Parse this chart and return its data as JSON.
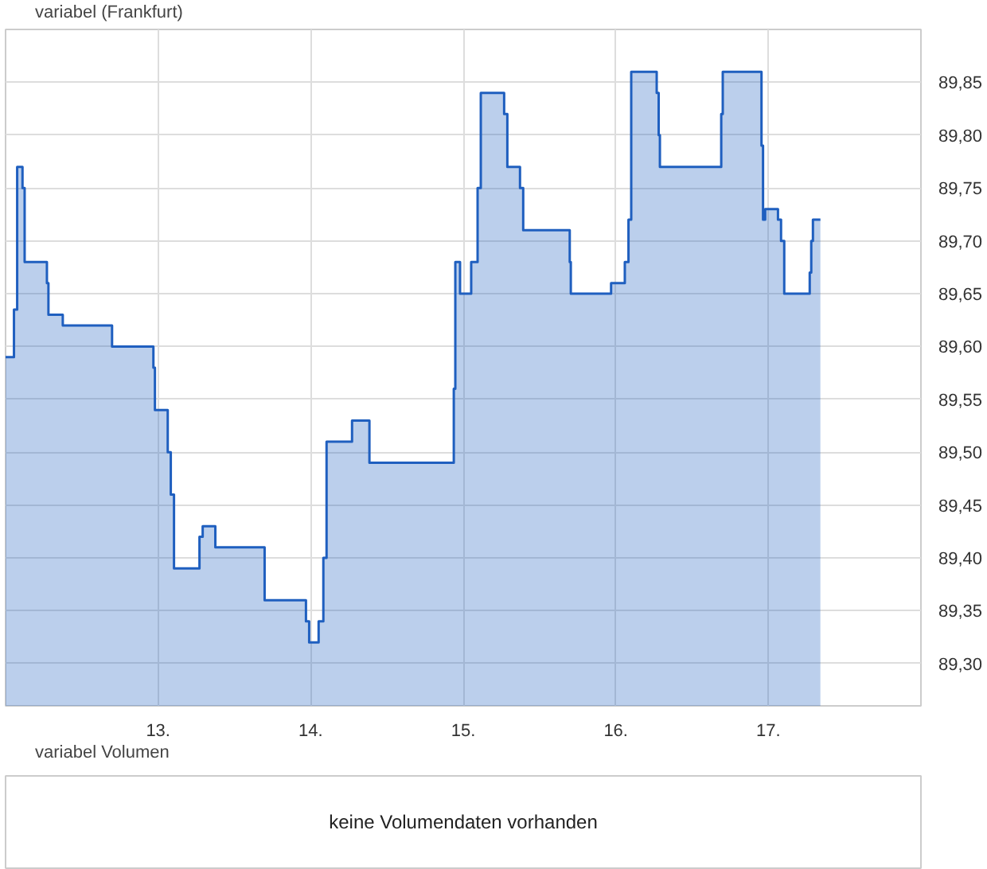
{
  "chart_data": [
    {
      "type": "area",
      "series": [
        {
          "name": "variabel (Frankfurt)",
          "color": "#1f5fbf",
          "x": [
            12.0,
            12.055,
            12.055,
            12.076,
            12.076,
            12.111,
            12.111,
            12.125,
            12.125,
            12.271,
            12.271,
            12.281,
            12.281,
            12.375,
            12.375,
            12.698,
            12.698,
            12.969,
            12.969,
            12.979,
            12.979,
            13.063,
            13.063,
            13.083,
            13.083,
            13.104,
            13.104,
            13.271,
            13.271,
            13.292,
            13.292,
            13.375,
            13.375,
            13.698,
            13.698,
            13.969,
            13.969,
            13.99,
            13.99,
            14.052,
            14.052,
            14.083,
            14.083,
            14.104,
            14.104,
            14.271,
            14.271,
            14.385,
            14.385,
            14.938,
            14.938,
            14.948,
            14.948,
            14.979,
            14.979,
            15.052,
            15.052,
            15.094,
            15.094,
            15.115,
            15.115,
            15.268,
            15.268,
            15.289,
            15.289,
            15.372,
            15.372,
            15.393,
            15.393,
            15.698,
            15.698,
            15.705,
            15.705,
            15.969,
            15.969,
            16.059,
            16.059,
            16.083,
            16.083,
            16.101,
            16.101,
            16.268,
            16.268,
            16.281,
            16.281,
            16.289,
            16.289,
            16.691,
            16.691,
            16.701,
            16.701,
            16.955,
            16.955,
            16.965,
            16.965,
            16.979,
            16.979,
            17.063,
            17.063,
            17.083,
            17.083,
            17.104,
            17.104,
            17.271,
            17.271,
            17.281,
            17.281,
            17.292,
            17.292,
            17.341
          ],
          "values": [
            89.59,
            89.59,
            89.635,
            89.635,
            89.77,
            89.77,
            89.75,
            89.75,
            89.68,
            89.68,
            89.66,
            89.66,
            89.63,
            89.63,
            89.62,
            89.62,
            89.6,
            89.6,
            89.58,
            89.58,
            89.54,
            89.54,
            89.5,
            89.5,
            89.46,
            89.46,
            89.39,
            89.39,
            89.42,
            89.42,
            89.43,
            89.43,
            89.41,
            89.41,
            89.36,
            89.36,
            89.34,
            89.34,
            89.32,
            89.32,
            89.34,
            89.34,
            89.4,
            89.4,
            89.51,
            89.51,
            89.53,
            89.53,
            89.49,
            89.49,
            89.56,
            89.56,
            89.68,
            89.68,
            89.65,
            89.65,
            89.68,
            89.68,
            89.75,
            89.75,
            89.84,
            89.84,
            89.82,
            89.82,
            89.77,
            89.77,
            89.75,
            89.75,
            89.71,
            89.71,
            89.68,
            89.68,
            89.65,
            89.65,
            89.66,
            89.66,
            89.68,
            89.68,
            89.72,
            89.72,
            89.86,
            89.86,
            89.84,
            89.84,
            89.8,
            89.8,
            89.77,
            89.77,
            89.82,
            89.82,
            89.86,
            89.86,
            89.79,
            89.79,
            89.72,
            89.72,
            89.73,
            89.73,
            89.72,
            89.72,
            89.7,
            89.7,
            89.65,
            89.65,
            89.67,
            89.67,
            89.7,
            89.7,
            89.72,
            89.72
          ]
        }
      ],
      "xlim": [
        12.0,
        18.0
      ],
      "xticks": [
        {
          "value": 13,
          "label": "13."
        },
        {
          "value": 14,
          "label": "14."
        },
        {
          "value": 15,
          "label": "15."
        },
        {
          "value": 16,
          "label": "16."
        },
        {
          "value": 17,
          "label": "17."
        }
      ],
      "ylim": [
        89.26,
        89.9
      ],
      "yticks": [
        {
          "value": 89.3,
          "label": "89,30"
        },
        {
          "value": 89.35,
          "label": "89,35"
        },
        {
          "value": 89.4,
          "label": "89,40"
        },
        {
          "value": 89.45,
          "label": "89,45"
        },
        {
          "value": 89.5,
          "label": "89,50"
        },
        {
          "value": 89.55,
          "label": "89,55"
        },
        {
          "value": 89.6,
          "label": "89,60"
        },
        {
          "value": 89.65,
          "label": "89,65"
        },
        {
          "value": 89.7,
          "label": "89,70"
        },
        {
          "value": 89.75,
          "label": "89,75"
        },
        {
          "value": 89.8,
          "label": "89,80"
        },
        {
          "value": 89.85,
          "label": "89,85"
        }
      ],
      "grid": true,
      "legend": "top left"
    },
    {
      "type": "other",
      "title": "variabel Volumen",
      "annotations": [
        "keine Volumendaten vorhanden"
      ]
    }
  ]
}
